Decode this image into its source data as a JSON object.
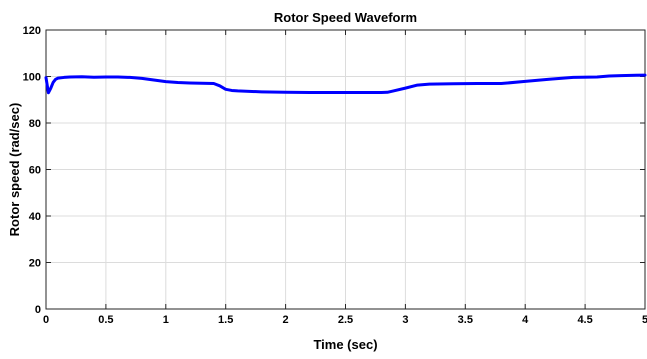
{
  "chart_data": {
    "type": "line",
    "title": "Rotor Speed Waveform",
    "xlabel": "Time (sec)",
    "ylabel": "Rotor speed (rad/sec)",
    "xlim": [
      0,
      5
    ],
    "ylim": [
      0,
      120
    ],
    "xticks": [
      "0",
      "0.5",
      "1",
      "1.5",
      "2",
      "2.5",
      "3",
      "3.5",
      "4",
      "4.5",
      "5"
    ],
    "yticks": [
      "0",
      "20",
      "40",
      "60",
      "80",
      "100",
      "120"
    ],
    "grid": true,
    "line_color": "#0000ff",
    "series": [
      {
        "x": [
          0,
          0.02,
          0.04,
          0.06,
          0.08,
          0.1,
          0.15,
          0.2,
          0.3,
          0.4,
          0.5,
          0.6,
          0.7,
          0.8,
          0.9,
          1.0,
          1.1,
          1.2,
          1.3,
          1.4,
          1.45,
          1.5,
          1.55,
          1.6,
          1.8,
          2.0,
          2.2,
          2.4,
          2.6,
          2.8,
          2.85,
          2.9,
          3.0,
          3.1,
          3.2,
          3.4,
          3.6,
          3.8,
          3.85,
          4.0,
          4.2,
          4.4,
          4.6,
          4.7,
          4.8,
          5.0
        ],
        "values": [
          99.5,
          93,
          95,
          97.5,
          98.8,
          99.3,
          99.6,
          99.8,
          99.9,
          99.7,
          99.8,
          99.8,
          99.6,
          99.2,
          98.5,
          97.8,
          97.4,
          97.2,
          97.1,
          97.0,
          96.0,
          94.5,
          94.0,
          93.8,
          93.4,
          93.2,
          93.1,
          93.1,
          93.1,
          93.1,
          93.2,
          93.8,
          95.0,
          96.3,
          96.7,
          96.9,
          97.0,
          97.0,
          97.2,
          97.9,
          98.8,
          99.6,
          99.8,
          100.2,
          100.4,
          100.6
        ]
      }
    ]
  }
}
